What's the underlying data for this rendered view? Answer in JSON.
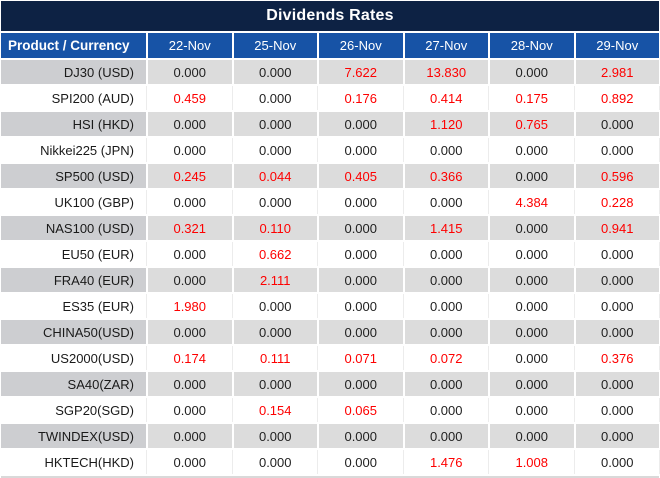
{
  "chart_data": {
    "type": "table",
    "title": "Dividends Rates",
    "corner_header": "Product / Currency",
    "columns": [
      "22-Nov",
      "25-Nov",
      "26-Nov",
      "27-Nov",
      "28-Nov",
      "29-Nov"
    ],
    "rows": [
      {
        "product": "DJ30 (USD)",
        "values": [
          "0.000",
          "0.000",
          "7.622",
          "13.830",
          "0.000",
          "2.981"
        ]
      },
      {
        "product": "SPI200 (AUD)",
        "values": [
          "0.459",
          "0.000",
          "0.176",
          "0.414",
          "0.175",
          "0.892"
        ]
      },
      {
        "product": "HSI (HKD)",
        "values": [
          "0.000",
          "0.000",
          "0.000",
          "1.120",
          "0.765",
          "0.000"
        ]
      },
      {
        "product": "Nikkei225 (JPN)",
        "values": [
          "0.000",
          "0.000",
          "0.000",
          "0.000",
          "0.000",
          "0.000"
        ]
      },
      {
        "product": "SP500 (USD)",
        "values": [
          "0.245",
          "0.044",
          "0.405",
          "0.366",
          "0.000",
          "0.596"
        ]
      },
      {
        "product": "UK100 (GBP)",
        "values": [
          "0.000",
          "0.000",
          "0.000",
          "0.000",
          "4.384",
          "0.228"
        ]
      },
      {
        "product": "NAS100 (USD)",
        "values": [
          "0.321",
          "0.110",
          "0.000",
          "1.415",
          "0.000",
          "0.941"
        ]
      },
      {
        "product": "EU50 (EUR)",
        "values": [
          "0.000",
          "0.662",
          "0.000",
          "0.000",
          "0.000",
          "0.000"
        ]
      },
      {
        "product": "FRA40 (EUR)",
        "values": [
          "0.000",
          "2.111",
          "0.000",
          "0.000",
          "0.000",
          "0.000"
        ]
      },
      {
        "product": "ES35 (EUR)",
        "values": [
          "1.980",
          "0.000",
          "0.000",
          "0.000",
          "0.000",
          "0.000"
        ]
      },
      {
        "product": "CHINA50(USD)",
        "values": [
          "0.000",
          "0.000",
          "0.000",
          "0.000",
          "0.000",
          "0.000"
        ]
      },
      {
        "product": "US2000(USD)",
        "values": [
          "0.174",
          "0.111",
          "0.071",
          "0.072",
          "0.000",
          "0.376"
        ]
      },
      {
        "product": "SA40(ZAR)",
        "values": [
          "0.000",
          "0.000",
          "0.000",
          "0.000",
          "0.000",
          "0.000"
        ]
      },
      {
        "product": "SGP20(SGD)",
        "values": [
          "0.000",
          "0.154",
          "0.065",
          "0.000",
          "0.000",
          "0.000"
        ]
      },
      {
        "product": "TWINDEX(USD)",
        "values": [
          "0.000",
          "0.000",
          "0.000",
          "0.000",
          "0.000",
          "0.000"
        ]
      },
      {
        "product": "HKTECH(HKD)",
        "values": [
          "0.000",
          "0.000",
          "0.000",
          "1.476",
          "1.008",
          "0.000"
        ]
      }
    ]
  },
  "colors": {
    "title_bg": "#0d2244",
    "header_bg": "#1753a6",
    "header_text": "#ffffff",
    "shaded_product_bg": "#cdced1",
    "shaded_value_bg": "#dcdcdc",
    "plain_separator": "#ececec",
    "bottom_strip": "#d9d9d9",
    "product_text": "#1a1a1a",
    "zero_value_color": "#1f1f1f",
    "nonzero_value_color": "#fe0000"
  }
}
